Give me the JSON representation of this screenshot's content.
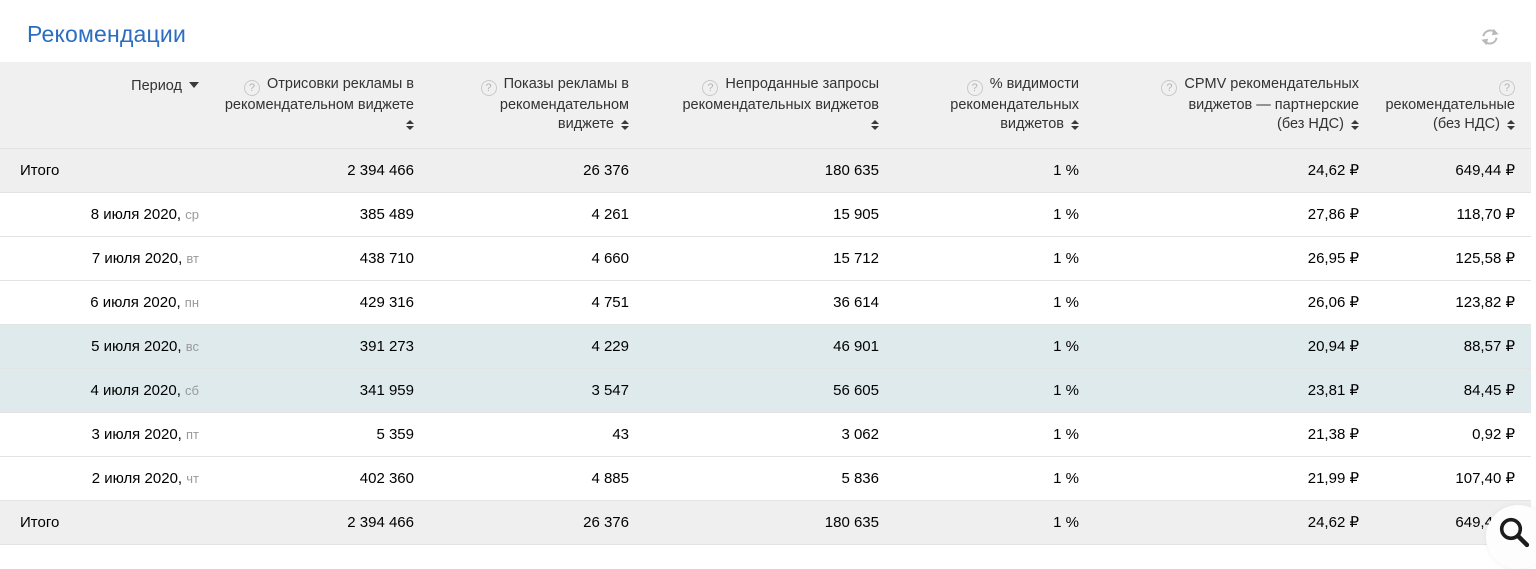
{
  "page": {
    "title": "Рекомендации"
  },
  "colors": {
    "title_blue": "#2b6dc0",
    "header_bg": "#f0f0f0",
    "total_row_bg": "#efefef",
    "weekend_row_bg": "#dfeaec",
    "weekday_gray": "#9a9a9a"
  },
  "icons": {
    "help_glyph": "?"
  },
  "table": {
    "period_column": {
      "label": "Период"
    },
    "columns": [
      {
        "id": "renders",
        "label": "Отрисовки рекламы в рекомендательном виджете",
        "lines": [
          "Отрисовки рекламы в",
          "рекомендательном виджете"
        ]
      },
      {
        "id": "shows",
        "label": "Показы рекламы в рекомендательном виджете",
        "lines": [
          "Показы рекламы в",
          "рекомендательном",
          "виджете"
        ]
      },
      {
        "id": "unsold",
        "label": "Непроданные запросы рекомендательных виджетов",
        "lines": [
          "Непроданные запросы",
          "рекомендательных виджетов"
        ]
      },
      {
        "id": "visibility",
        "label": "% видимости рекомендательных виджетов",
        "lines": [
          "% видимости",
          "рекомендательных",
          "виджетов"
        ]
      },
      {
        "id": "cpmv",
        "label": "CPMV рекомендательных виджетов — партнерские (без НДС)",
        "lines": [
          "CPMV рекомендательных",
          "виджетов — партнерские",
          "(без НДС)"
        ]
      },
      {
        "id": "reward",
        "label": "рекомендательные (без НДС)",
        "lines": [
          "рекомендательные",
          "(без НДС)"
        ]
      }
    ],
    "rows": [
      {
        "type": "total",
        "label": "Итого",
        "highlight": false,
        "values": [
          "2 394 466",
          "26 376",
          "180 635",
          "1 %",
          "24,62 ₽",
          "649,44 ₽"
        ]
      },
      {
        "type": "day",
        "date": "8 июля 2020,",
        "weekday": "ср",
        "highlight": false,
        "values": [
          "385 489",
          "4 261",
          "15 905",
          "1 %",
          "27,86 ₽",
          "118,70 ₽"
        ]
      },
      {
        "type": "day",
        "date": "7 июля 2020,",
        "weekday": "вт",
        "highlight": false,
        "values": [
          "438 710",
          "4 660",
          "15 712",
          "1 %",
          "26,95 ₽",
          "125,58 ₽"
        ]
      },
      {
        "type": "day",
        "date": "6 июля 2020,",
        "weekday": "пн",
        "highlight": false,
        "values": [
          "429 316",
          "4 751",
          "36 614",
          "1 %",
          "26,06 ₽",
          "123,82 ₽"
        ]
      },
      {
        "type": "day",
        "date": "5 июля 2020,",
        "weekday": "вс",
        "highlight": true,
        "values": [
          "391 273",
          "4 229",
          "46 901",
          "1 %",
          "20,94 ₽",
          "88,57 ₽"
        ]
      },
      {
        "type": "day",
        "date": "4 июля 2020,",
        "weekday": "сб",
        "highlight": true,
        "values": [
          "341 959",
          "3 547",
          "56 605",
          "1 %",
          "23,81 ₽",
          "84,45 ₽"
        ]
      },
      {
        "type": "day",
        "date": "3 июля 2020,",
        "weekday": "пт",
        "highlight": false,
        "values": [
          "5 359",
          "43",
          "3 062",
          "1 %",
          "21,38 ₽",
          "0,92 ₽"
        ]
      },
      {
        "type": "day",
        "date": "2 июля 2020,",
        "weekday": "чт",
        "highlight": false,
        "values": [
          "402 360",
          "4 885",
          "5 836",
          "1 %",
          "21,99 ₽",
          "107,40 ₽"
        ]
      },
      {
        "type": "total",
        "label": "Итого",
        "highlight": false,
        "values": [
          "2 394 466",
          "26 376",
          "180 635",
          "1 %",
          "24,62 ₽",
          "649,44 ₽"
        ]
      }
    ]
  }
}
